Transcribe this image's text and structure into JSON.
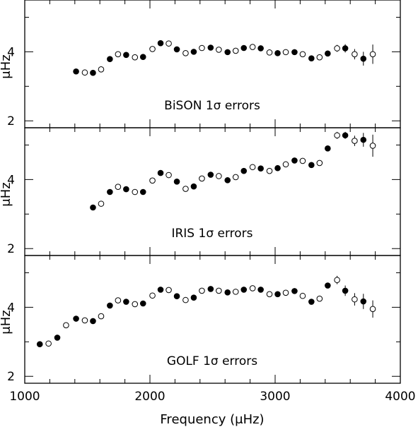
{
  "chart_data": {
    "type": "scatter",
    "xlabel": "Frequency (μHz)",
    "xlim": [
      1000,
      4000
    ],
    "x_ticks": [
      1000,
      2000,
      3000,
      4000
    ],
    "x_minor_step": 200,
    "y_ticks": [
      2,
      4
    ],
    "y_minor_step": 1,
    "grid": false,
    "panels": [
      {
        "label": "BiSON 1σ errors",
        "ylabel": "μHz",
        "ylim": [
          1.8,
          5.5
        ],
        "points": [
          {
            "x": 1410,
            "y": 3.43,
            "err": 0.05,
            "filled": true
          },
          {
            "x": 1480,
            "y": 3.4,
            "err": 0.05,
            "filled": false
          },
          {
            "x": 1545,
            "y": 3.39,
            "err": 0.05,
            "filled": true
          },
          {
            "x": 1610,
            "y": 3.49,
            "err": 0.05,
            "filled": false
          },
          {
            "x": 1680,
            "y": 3.79,
            "err": 0.05,
            "filled": true
          },
          {
            "x": 1745,
            "y": 3.93,
            "err": 0.05,
            "filled": false
          },
          {
            "x": 1810,
            "y": 3.91,
            "err": 0.05,
            "filled": true
          },
          {
            "x": 1880,
            "y": 3.84,
            "err": 0.05,
            "filled": false
          },
          {
            "x": 1945,
            "y": 3.85,
            "err": 0.05,
            "filled": true
          },
          {
            "x": 2020,
            "y": 4.08,
            "err": 0.05,
            "filled": false
          },
          {
            "x": 2085,
            "y": 4.25,
            "err": 0.05,
            "filled": true
          },
          {
            "x": 2150,
            "y": 4.24,
            "err": 0.05,
            "filled": false
          },
          {
            "x": 2215,
            "y": 4.07,
            "err": 0.05,
            "filled": true
          },
          {
            "x": 2285,
            "y": 3.96,
            "err": 0.05,
            "filled": false
          },
          {
            "x": 2350,
            "y": 4.0,
            "err": 0.05,
            "filled": true
          },
          {
            "x": 2415,
            "y": 4.11,
            "err": 0.05,
            "filled": false
          },
          {
            "x": 2485,
            "y": 4.12,
            "err": 0.05,
            "filled": true
          },
          {
            "x": 2550,
            "y": 4.06,
            "err": 0.05,
            "filled": false
          },
          {
            "x": 2620,
            "y": 3.99,
            "err": 0.05,
            "filled": true
          },
          {
            "x": 2685,
            "y": 4.03,
            "err": 0.05,
            "filled": false
          },
          {
            "x": 2750,
            "y": 4.11,
            "err": 0.05,
            "filled": true
          },
          {
            "x": 2820,
            "y": 4.14,
            "err": 0.05,
            "filled": false
          },
          {
            "x": 2885,
            "y": 4.1,
            "err": 0.05,
            "filled": true
          },
          {
            "x": 2955,
            "y": 3.98,
            "err": 0.05,
            "filled": false
          },
          {
            "x": 3020,
            "y": 3.96,
            "err": 0.05,
            "filled": true
          },
          {
            "x": 3085,
            "y": 3.99,
            "err": 0.05,
            "filled": false
          },
          {
            "x": 3155,
            "y": 3.99,
            "err": 0.05,
            "filled": true
          },
          {
            "x": 3220,
            "y": 3.93,
            "err": 0.05,
            "filled": false
          },
          {
            "x": 3290,
            "y": 3.81,
            "err": 0.05,
            "filled": true
          },
          {
            "x": 3355,
            "y": 3.84,
            "err": 0.05,
            "filled": false
          },
          {
            "x": 3420,
            "y": 3.95,
            "err": 0.05,
            "filled": true
          },
          {
            "x": 3495,
            "y": 4.1,
            "err": 0.1,
            "filled": false
          },
          {
            "x": 3560,
            "y": 4.1,
            "err": 0.12,
            "filled": true
          },
          {
            "x": 3635,
            "y": 3.93,
            "err": 0.15,
            "filled": false
          },
          {
            "x": 3705,
            "y": 3.8,
            "err": 0.2,
            "filled": true
          },
          {
            "x": 3780,
            "y": 3.93,
            "err": 0.28,
            "filled": false
          }
        ]
      },
      {
        "label": "IRIS 1σ errors",
        "ylabel": "μHz",
        "ylim": [
          1.8,
          5.5
        ],
        "points": [
          {
            "x": 1545,
            "y": 3.19,
            "err": 0.05,
            "filled": true
          },
          {
            "x": 1610,
            "y": 3.3,
            "err": 0.05,
            "filled": false
          },
          {
            "x": 1680,
            "y": 3.64,
            "err": 0.05,
            "filled": true
          },
          {
            "x": 1745,
            "y": 3.79,
            "err": 0.05,
            "filled": false
          },
          {
            "x": 1810,
            "y": 3.72,
            "err": 0.05,
            "filled": true
          },
          {
            "x": 1880,
            "y": 3.64,
            "err": 0.05,
            "filled": false
          },
          {
            "x": 1945,
            "y": 3.64,
            "err": 0.05,
            "filled": true
          },
          {
            "x": 2020,
            "y": 3.97,
            "err": 0.05,
            "filled": false
          },
          {
            "x": 2085,
            "y": 4.19,
            "err": 0.05,
            "filled": true
          },
          {
            "x": 2150,
            "y": 4.13,
            "err": 0.05,
            "filled": false
          },
          {
            "x": 2215,
            "y": 3.94,
            "err": 0.05,
            "filled": true
          },
          {
            "x": 2285,
            "y": 3.73,
            "err": 0.05,
            "filled": false
          },
          {
            "x": 2350,
            "y": 3.8,
            "err": 0.05,
            "filled": true
          },
          {
            "x": 2415,
            "y": 4.03,
            "err": 0.05,
            "filled": false
          },
          {
            "x": 2485,
            "y": 4.14,
            "err": 0.05,
            "filled": true
          },
          {
            "x": 2550,
            "y": 4.1,
            "err": 0.05,
            "filled": false
          },
          {
            "x": 2620,
            "y": 3.98,
            "err": 0.05,
            "filled": true
          },
          {
            "x": 2685,
            "y": 4.07,
            "err": 0.05,
            "filled": false
          },
          {
            "x": 2750,
            "y": 4.25,
            "err": 0.05,
            "filled": true
          },
          {
            "x": 2820,
            "y": 4.36,
            "err": 0.05,
            "filled": false
          },
          {
            "x": 2885,
            "y": 4.32,
            "err": 0.05,
            "filled": true
          },
          {
            "x": 2955,
            "y": 4.25,
            "err": 0.05,
            "filled": false
          },
          {
            "x": 3020,
            "y": 4.33,
            "err": 0.05,
            "filled": true
          },
          {
            "x": 3085,
            "y": 4.44,
            "err": 0.05,
            "filled": false
          },
          {
            "x": 3155,
            "y": 4.55,
            "err": 0.05,
            "filled": true
          },
          {
            "x": 3220,
            "y": 4.54,
            "err": 0.05,
            "filled": false
          },
          {
            "x": 3290,
            "y": 4.42,
            "err": 0.05,
            "filled": true
          },
          {
            "x": 3355,
            "y": 4.48,
            "err": 0.05,
            "filled": false
          },
          {
            "x": 3420,
            "y": 4.9,
            "err": 0.05,
            "filled": true
          },
          {
            "x": 3495,
            "y": 5.28,
            "err": 0.1,
            "filled": false
          },
          {
            "x": 3560,
            "y": 5.28,
            "err": 0.1,
            "filled": true
          },
          {
            "x": 3635,
            "y": 5.12,
            "err": 0.15,
            "filled": false
          },
          {
            "x": 3705,
            "y": 5.15,
            "err": 0.2,
            "filled": true
          },
          {
            "x": 3780,
            "y": 4.98,
            "err": 0.32,
            "filled": false
          }
        ]
      },
      {
        "label": "GOLF 1σ errors",
        "ylabel": "μHz",
        "ylim": [
          1.8,
          5.5
        ],
        "points": [
          {
            "x": 1120,
            "y": 2.93,
            "err": 0.05,
            "filled": true
          },
          {
            "x": 1190,
            "y": 2.95,
            "err": 0.05,
            "filled": false
          },
          {
            "x": 1260,
            "y": 3.12,
            "err": 0.05,
            "filled": true
          },
          {
            "x": 1330,
            "y": 3.48,
            "err": 0.05,
            "filled": false
          },
          {
            "x": 1410,
            "y": 3.67,
            "err": 0.05,
            "filled": true
          },
          {
            "x": 1480,
            "y": 3.62,
            "err": 0.05,
            "filled": false
          },
          {
            "x": 1545,
            "y": 3.6,
            "err": 0.05,
            "filled": true
          },
          {
            "x": 1610,
            "y": 3.74,
            "err": 0.05,
            "filled": false
          },
          {
            "x": 1680,
            "y": 4.05,
            "err": 0.05,
            "filled": true
          },
          {
            "x": 1745,
            "y": 4.2,
            "err": 0.05,
            "filled": false
          },
          {
            "x": 1810,
            "y": 4.16,
            "err": 0.05,
            "filled": true
          },
          {
            "x": 1880,
            "y": 4.09,
            "err": 0.05,
            "filled": false
          },
          {
            "x": 1945,
            "y": 4.11,
            "err": 0.05,
            "filled": true
          },
          {
            "x": 2020,
            "y": 4.34,
            "err": 0.05,
            "filled": false
          },
          {
            "x": 2085,
            "y": 4.51,
            "err": 0.05,
            "filled": true
          },
          {
            "x": 2150,
            "y": 4.5,
            "err": 0.05,
            "filled": false
          },
          {
            "x": 2215,
            "y": 4.32,
            "err": 0.05,
            "filled": true
          },
          {
            "x": 2285,
            "y": 4.21,
            "err": 0.05,
            "filled": false
          },
          {
            "x": 2350,
            "y": 4.28,
            "err": 0.05,
            "filled": true
          },
          {
            "x": 2415,
            "y": 4.48,
            "err": 0.05,
            "filled": false
          },
          {
            "x": 2485,
            "y": 4.53,
            "err": 0.05,
            "filled": true
          },
          {
            "x": 2550,
            "y": 4.48,
            "err": 0.05,
            "filled": false
          },
          {
            "x": 2620,
            "y": 4.43,
            "err": 0.05,
            "filled": true
          },
          {
            "x": 2685,
            "y": 4.45,
            "err": 0.05,
            "filled": false
          },
          {
            "x": 2750,
            "y": 4.51,
            "err": 0.05,
            "filled": true
          },
          {
            "x": 2820,
            "y": 4.55,
            "err": 0.05,
            "filled": false
          },
          {
            "x": 2885,
            "y": 4.51,
            "err": 0.05,
            "filled": true
          },
          {
            "x": 2955,
            "y": 4.38,
            "err": 0.05,
            "filled": false
          },
          {
            "x": 3020,
            "y": 4.38,
            "err": 0.05,
            "filled": true
          },
          {
            "x": 3085,
            "y": 4.42,
            "err": 0.05,
            "filled": false
          },
          {
            "x": 3155,
            "y": 4.47,
            "err": 0.05,
            "filled": true
          },
          {
            "x": 3220,
            "y": 4.33,
            "err": 0.05,
            "filled": false
          },
          {
            "x": 3290,
            "y": 4.16,
            "err": 0.05,
            "filled": true
          },
          {
            "x": 3355,
            "y": 4.25,
            "err": 0.05,
            "filled": false
          },
          {
            "x": 3420,
            "y": 4.63,
            "err": 0.08,
            "filled": true
          },
          {
            "x": 3495,
            "y": 4.79,
            "err": 0.12,
            "filled": false
          },
          {
            "x": 3560,
            "y": 4.48,
            "err": 0.15,
            "filled": true
          },
          {
            "x": 3635,
            "y": 4.23,
            "err": 0.18,
            "filled": false
          },
          {
            "x": 3705,
            "y": 4.17,
            "err": 0.22,
            "filled": true
          },
          {
            "x": 3780,
            "y": 3.95,
            "err": 0.25,
            "filled": false
          }
        ]
      }
    ]
  }
}
